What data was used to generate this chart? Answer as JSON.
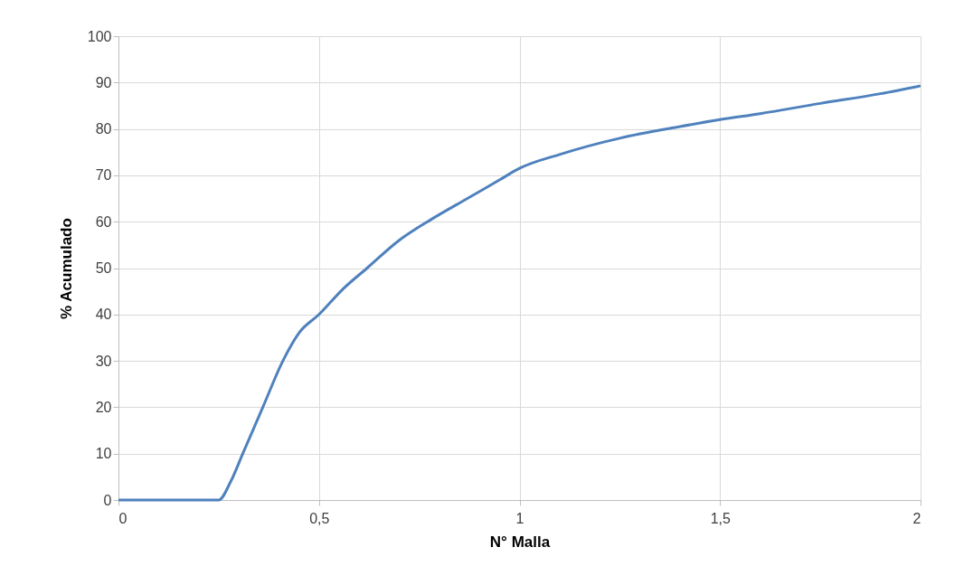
{
  "chart_data": {
    "type": "line",
    "xlabel": "N° Malla",
    "ylabel": "% Acumulado",
    "x": [
      0,
      0.03,
      0.07,
      0.25,
      0.28,
      0.31,
      0.36,
      0.41,
      0.45,
      0.5,
      0.56,
      0.62,
      0.7,
      0.78,
      0.87,
      0.95,
      1,
      1.1,
      1.25,
      1.4,
      1.5,
      1.6,
      1.75,
      1.9,
      2
    ],
    "series": [
      {
        "color": "#4f81bd",
        "values": [
          0,
          0,
          0,
          0,
          4,
          10,
          20,
          30,
          36,
          40,
          45.5,
          50,
          56,
          60.5,
          65,
          69,
          71.5,
          74.5,
          78,
          80.5,
          82,
          83.3,
          85.5,
          87.6,
          89.3
        ]
      }
    ],
    "xlim": [
      0,
      2
    ],
    "xticks": [
      0,
      {
        "value": 0.5,
        "label": "0,5"
      },
      1,
      {
        "value": 1.5,
        "label": "1,5"
      },
      2
    ],
    "ylim": [
      0,
      100
    ],
    "yticks": [
      0,
      10,
      20,
      30,
      40,
      50,
      60,
      70,
      80,
      90,
      100
    ],
    "grid": true,
    "legend": false,
    "marker": "none",
    "line_style": "solid"
  }
}
